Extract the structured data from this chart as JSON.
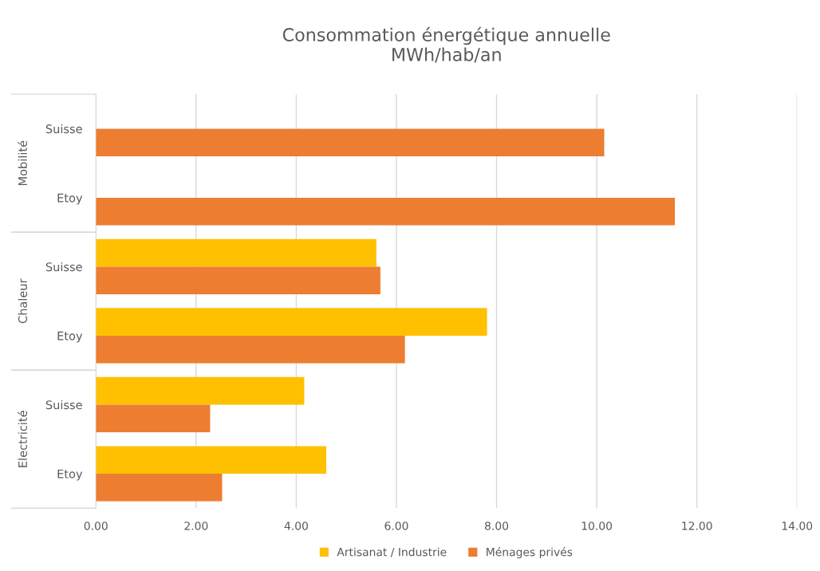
{
  "chart_data": {
    "type": "bar",
    "orientation": "horizontal",
    "title": "Consommation énergétique annuelle\nMWh/hab/an",
    "categories": [
      "Suisse",
      "Etoy",
      "Suisse",
      "Etoy",
      "Suisse",
      "Etoy"
    ],
    "annotations": [
      "Mobilité",
      "Chaleur",
      "Electricité"
    ],
    "series": [
      {
        "name": "Artisanat / Industrie",
        "color": "#ffc000",
        "values": [
          null,
          null,
          5.6,
          7.81,
          4.16,
          4.6
        ]
      },
      {
        "name": "Ménages privés",
        "color": "#ed7d31",
        "values": [
          10.15,
          11.56,
          5.68,
          6.17,
          2.28,
          2.52
        ]
      }
    ],
    "xlim": [
      0,
      14
    ],
    "xticks": [
      {
        "value": 0,
        "label": "0.00"
      },
      {
        "value": 2,
        "label": "2.00"
      },
      {
        "value": 4,
        "label": "4.00"
      },
      {
        "value": 6,
        "label": "6.00"
      },
      {
        "value": 8,
        "label": "8.00"
      },
      {
        "value": 10,
        "label": "10.00"
      },
      {
        "value": 12,
        "label": "12.00"
      },
      {
        "value": 14,
        "label": "14.00"
      }
    ],
    "grid": "x",
    "legend": "bottom"
  }
}
